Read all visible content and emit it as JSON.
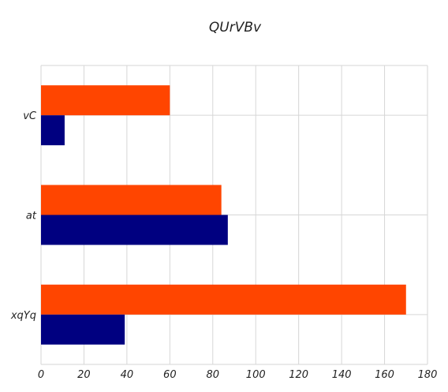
{
  "chart_data": {
    "type": "bar",
    "orientation": "horizontal",
    "title": "QUrVBv",
    "xlabel": "",
    "ylabel": "",
    "categories": [
      "vC",
      "at",
      "xqYq"
    ],
    "series": [
      {
        "color": "#ff4500",
        "values": [
          60,
          84,
          170
        ]
      },
      {
        "color": "#000080",
        "values": [
          11,
          87,
          39
        ]
      }
    ],
    "xlim": [
      0,
      180
    ],
    "xticks": [
      0,
      20,
      40,
      60,
      80,
      100,
      120,
      140,
      160,
      180
    ],
    "grid": true,
    "legend": "none"
  }
}
